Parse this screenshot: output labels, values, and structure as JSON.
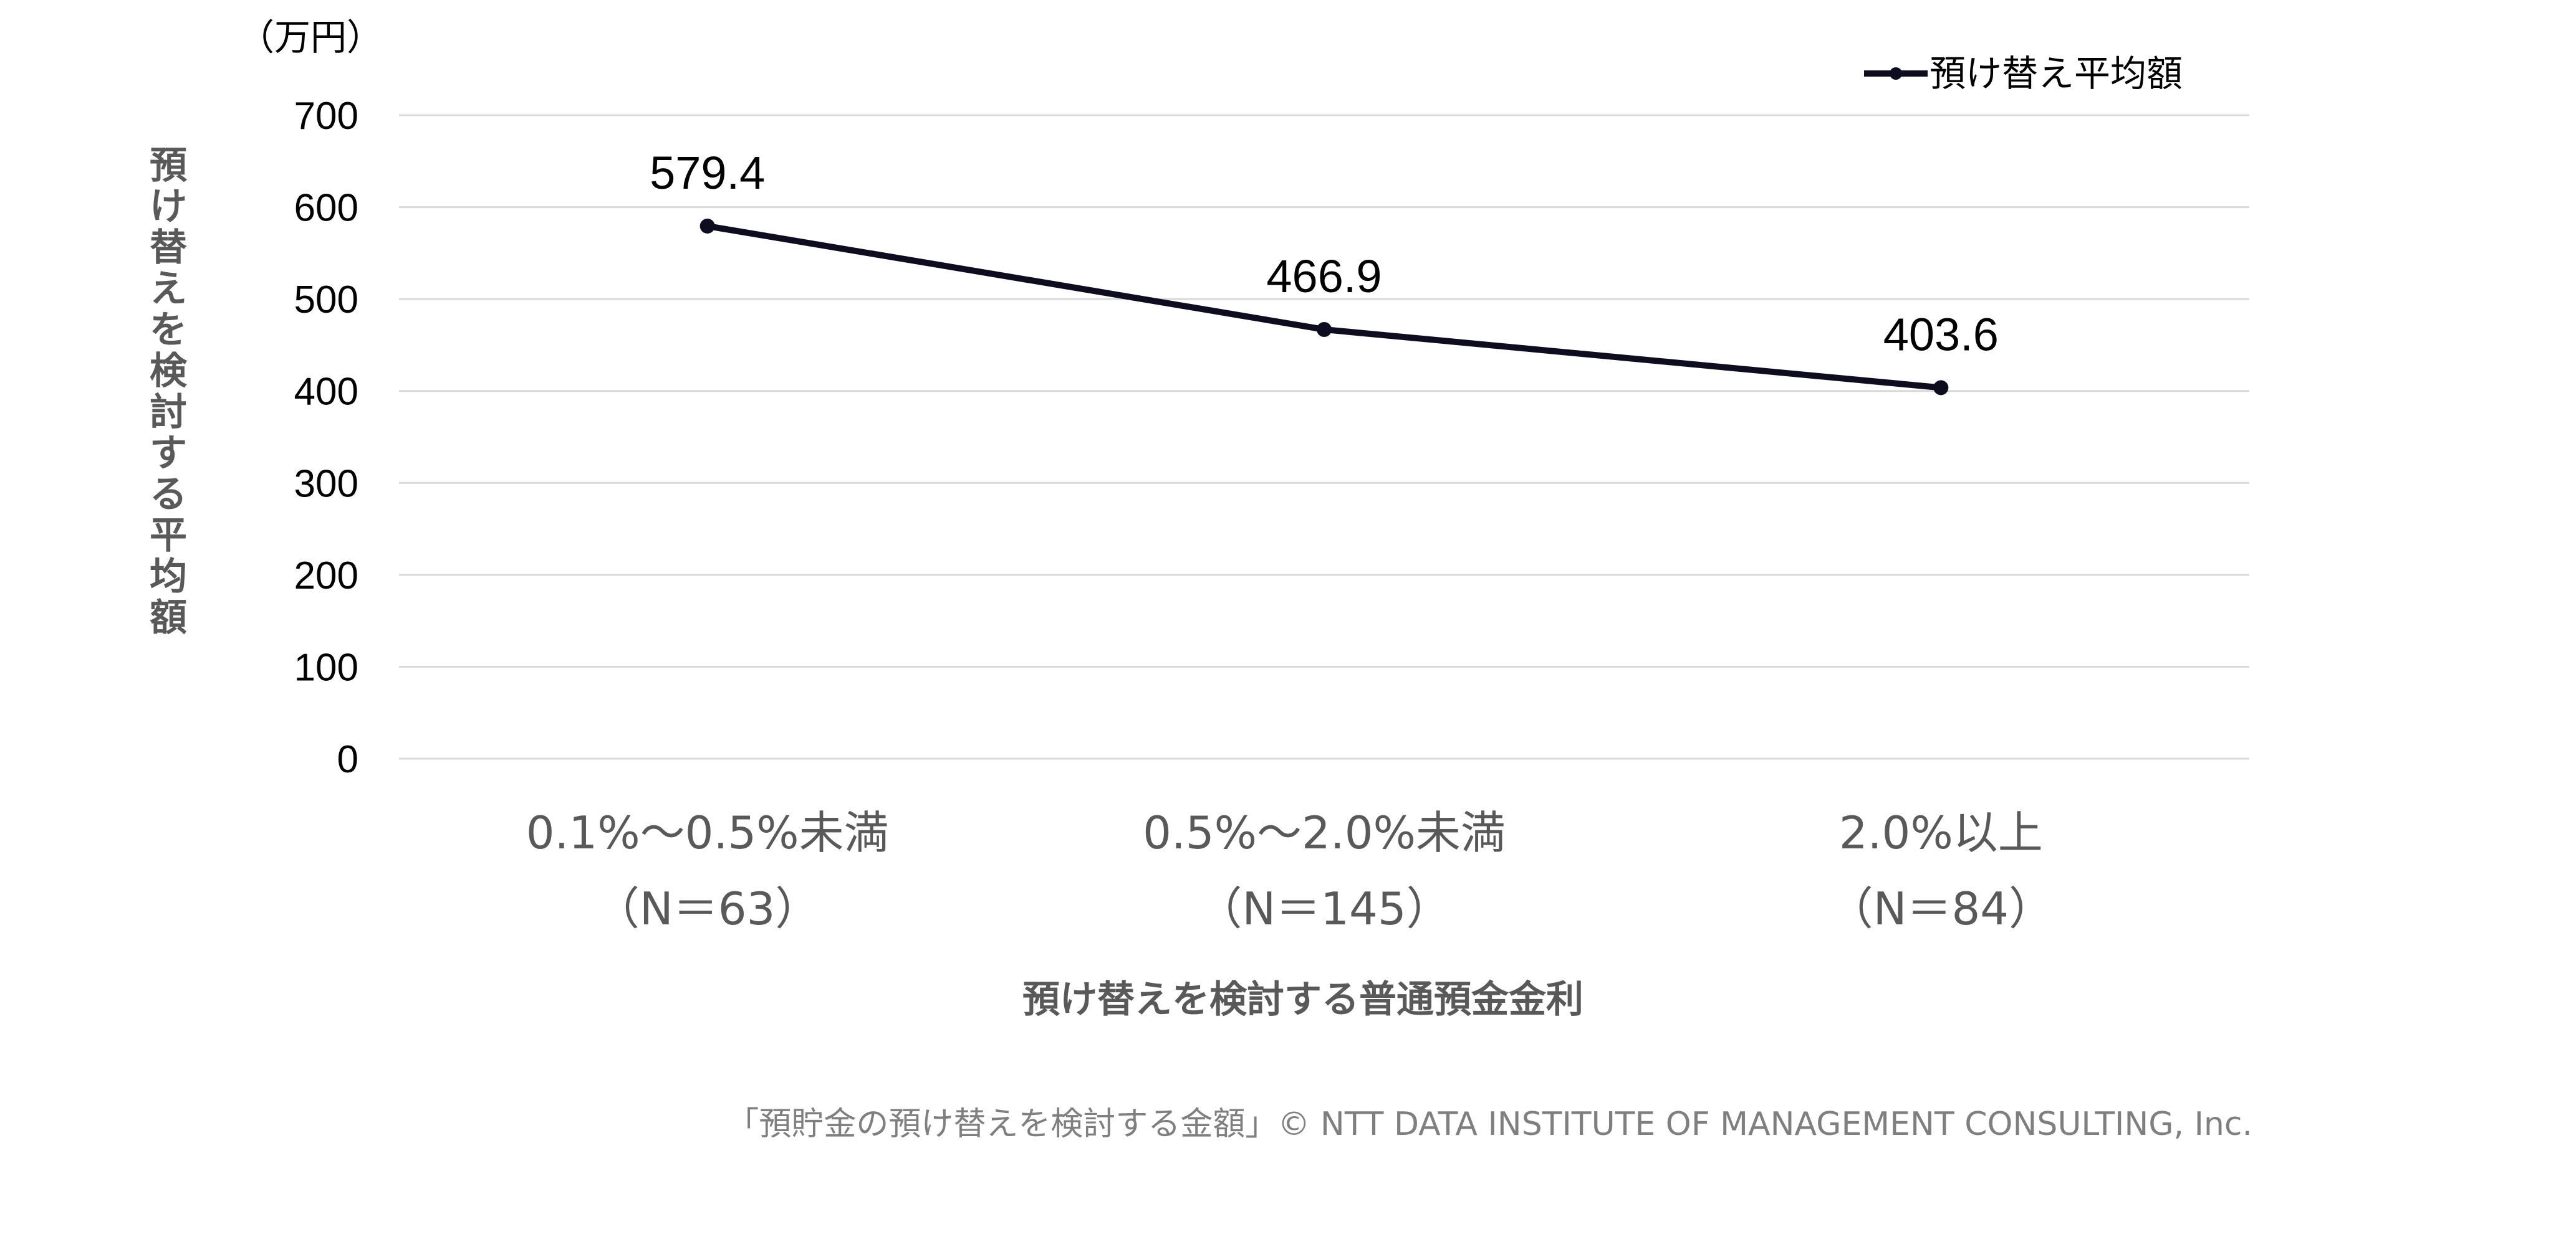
{
  "chart_data": {
    "type": "line",
    "unit_label": "（万円）",
    "ylabel": "預け替えを検討する平均額",
    "xlabel": "預け替えを検討する普通預金金利",
    "ylim": [
      0,
      700
    ],
    "yticks": [
      "0",
      "100",
      "200",
      "300",
      "400",
      "500",
      "600",
      "700"
    ],
    "grid": true,
    "legend_position": "top-right",
    "categories": [
      {
        "line1": "0.1%～0.5%未満",
        "line2": "（N＝63）"
      },
      {
        "line1": "0.5%～2.0%未満",
        "line2": "（N＝145）"
      },
      {
        "line1": "2.0%以上",
        "line2": "（N＝84）"
      }
    ],
    "series": [
      {
        "name": "預け替え平均額",
        "color": "#0d0d1f",
        "values": [
          579.4,
          466.9,
          403.6
        ],
        "data_labels": [
          "579.4",
          "466.9",
          "403.6"
        ]
      }
    ]
  },
  "footer": "「預貯金の預け替えを検討する金額」© NTT DATA INSTITUTE OF MANAGEMENT CONSULTING, Inc."
}
